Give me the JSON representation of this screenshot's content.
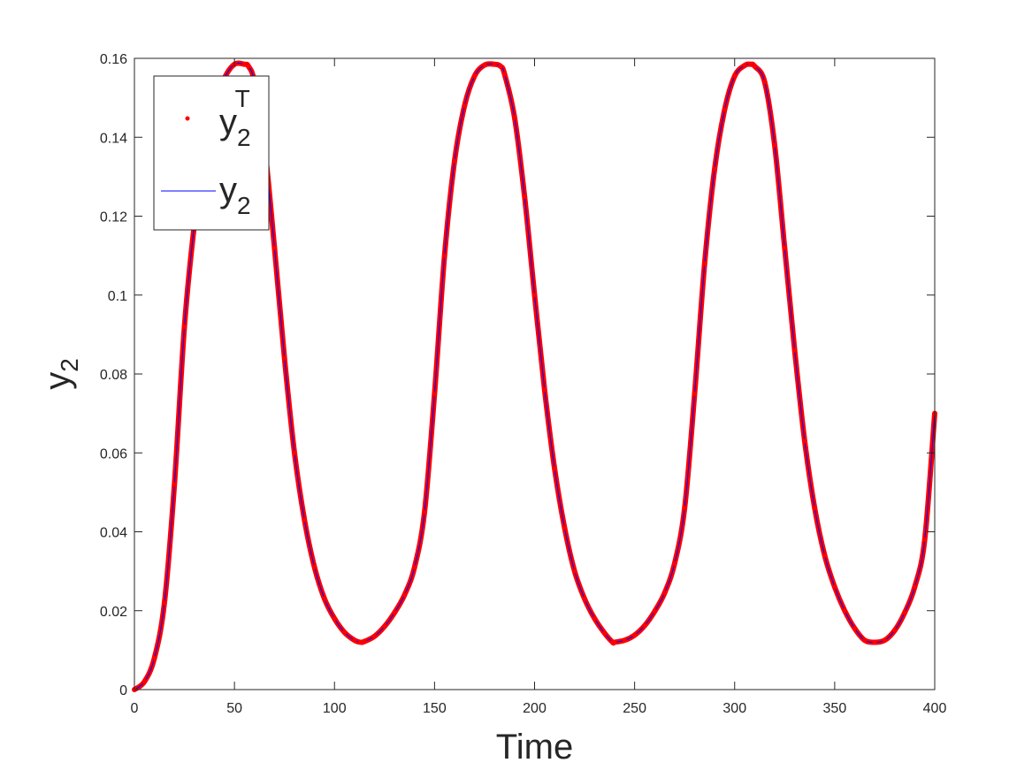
{
  "chart_data": {
    "type": "line",
    "title": "",
    "xlabel": "Time",
    "ylabel": {
      "base": "y",
      "sub": "2"
    },
    "xlim": [
      0,
      400
    ],
    "ylim": [
      0,
      0.16
    ],
    "grid": false,
    "legend_position": "top-left",
    "x_ticks": [
      0,
      50,
      100,
      150,
      200,
      250,
      300,
      350,
      400
    ],
    "x_tick_labels": [
      "0",
      "50",
      "100",
      "150",
      "200",
      "250",
      "300",
      "350",
      "400"
    ],
    "y_ticks": [
      0,
      0.02,
      0.04,
      0.06,
      0.08,
      0.1,
      0.12,
      0.14,
      0.16
    ],
    "y_tick_labels": [
      "0",
      "0.02",
      "0.04",
      "0.06",
      "0.08",
      "0.1",
      "0.12",
      "0.14",
      "0.16"
    ],
    "series": [
      {
        "name": {
          "base": "y",
          "sub": "2",
          "sup": "T"
        },
        "style": "markers",
        "color": "#ff0000"
      },
      {
        "name": {
          "base": "y",
          "sub": "2"
        },
        "style": "line",
        "color": "#0000ff"
      }
    ],
    "x": [
      0,
      5,
      10,
      15,
      20,
      25,
      30,
      35,
      40,
      45,
      50,
      55,
      57,
      60,
      65,
      70,
      75,
      80,
      85,
      90,
      95,
      100,
      105,
      110,
      113,
      115,
      120,
      125,
      130,
      135,
      140,
      145,
      150,
      155,
      160,
      165,
      170,
      175,
      180,
      183,
      185,
      190,
      195,
      200,
      205,
      210,
      215,
      220,
      225,
      230,
      235,
      239,
      240,
      245,
      250,
      255,
      260,
      265,
      270,
      275,
      280,
      285,
      290,
      295,
      300,
      305,
      308,
      310,
      315,
      320,
      325,
      330,
      335,
      340,
      345,
      350,
      355,
      360,
      365,
      370,
      375,
      380,
      385,
      390,
      395,
      400
    ],
    "y": [
      0,
      0.002,
      0.008,
      0.022,
      0.052,
      0.092,
      0.118,
      0.136,
      0.148,
      0.155,
      0.1585,
      0.1585,
      0.158,
      0.154,
      0.138,
      0.112,
      0.084,
      0.06,
      0.043,
      0.031,
      0.023,
      0.018,
      0.0145,
      0.0125,
      0.012,
      0.0122,
      0.0135,
      0.016,
      0.0195,
      0.024,
      0.031,
      0.045,
      0.075,
      0.11,
      0.134,
      0.148,
      0.1555,
      0.1583,
      0.1585,
      0.158,
      0.156,
      0.145,
      0.125,
      0.1,
      0.076,
      0.056,
      0.041,
      0.03,
      0.023,
      0.018,
      0.0143,
      0.012,
      0.012,
      0.0125,
      0.0138,
      0.0162,
      0.0198,
      0.0245,
      0.032,
      0.046,
      0.075,
      0.108,
      0.132,
      0.147,
      0.1555,
      0.1582,
      0.1585,
      0.158,
      0.154,
      0.138,
      0.112,
      0.086,
      0.063,
      0.046,
      0.034,
      0.026,
      0.02,
      0.0155,
      0.0125,
      0.012,
      0.0125,
      0.015,
      0.0195,
      0.026,
      0.038,
      0.07
    ]
  }
}
